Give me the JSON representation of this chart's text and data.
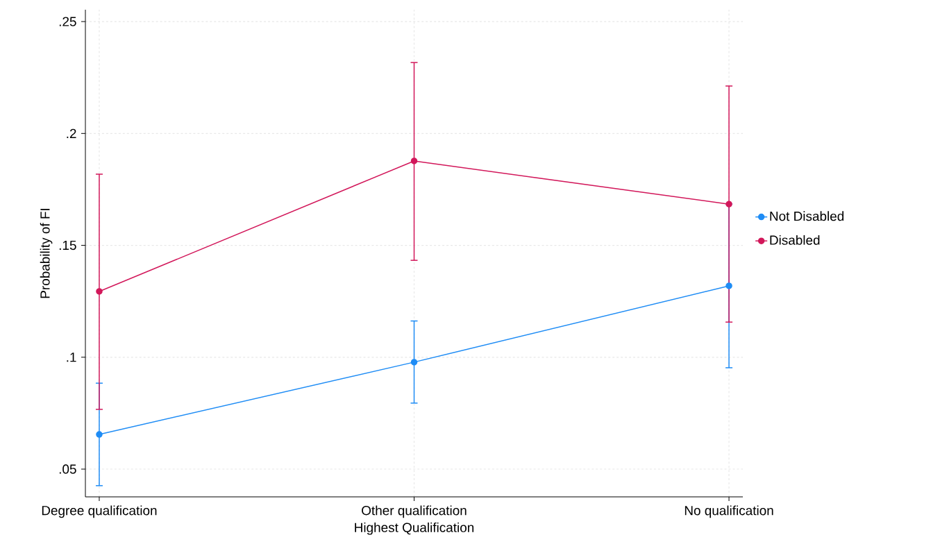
{
  "chart_data": {
    "type": "line",
    "xlabel": "Highest Qualification",
    "ylabel": "Probability of FI",
    "categories": [
      "Degree qualification",
      "Other qualification",
      "No qualification"
    ],
    "series": [
      {
        "name": "Not Disabled",
        "color": "#1e8cf5",
        "values": [
          0.0655,
          0.0978,
          0.1319
        ],
        "errors": [
          [
            0.0426,
            0.0884
          ],
          [
            0.0795,
            0.1162
          ],
          [
            0.0953,
            0.1685
          ]
        ]
      },
      {
        "name": "Disabled",
        "color": "#d2175a",
        "values": [
          0.1294,
          0.1877,
          0.1684
        ],
        "errors": [
          [
            0.0767,
            0.1818
          ],
          [
            0.1433,
            0.2317
          ],
          [
            0.1157,
            0.2212
          ]
        ]
      }
    ],
    "ylim": [
      0.0376,
      0.2553
    ],
    "yticks": [
      {
        "value": 0.05,
        "label": ".05"
      },
      {
        "value": 0.1,
        "label": ".1"
      },
      {
        "value": 0.15,
        "label": ".15"
      },
      {
        "value": 0.2,
        "label": ".2"
      },
      {
        "value": 0.25,
        "label": ".25"
      }
    ],
    "grid": true,
    "legend": "right",
    "marker": "circle",
    "line_style": "solid"
  }
}
